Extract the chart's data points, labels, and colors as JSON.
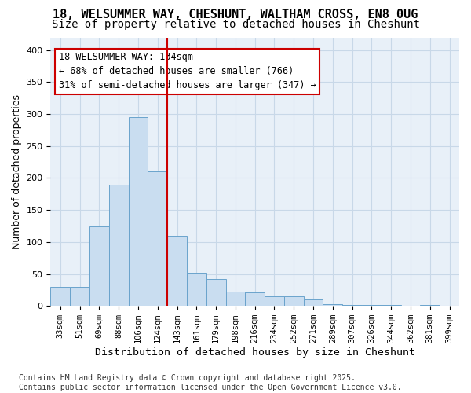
{
  "title1": "18, WELSUMMER WAY, CHESHUNT, WALTHAM CROSS, EN8 0UG",
  "title2": "Size of property relative to detached houses in Cheshunt",
  "xlabel": "Distribution of detached houses by size in Cheshunt",
  "ylabel": "Number of detached properties",
  "bin_labels": [
    "33sqm",
    "51sqm",
    "69sqm",
    "88sqm",
    "106sqm",
    "124sqm",
    "143sqm",
    "161sqm",
    "179sqm",
    "198sqm",
    "216sqm",
    "234sqm",
    "252sqm",
    "271sqm",
    "289sqm",
    "307sqm",
    "326sqm",
    "344sqm",
    "362sqm",
    "381sqm",
    "399sqm"
  ],
  "bar_values": [
    30,
    30,
    125,
    190,
    295,
    210,
    110,
    52,
    42,
    22,
    21,
    15,
    15,
    10,
    3,
    2,
    1,
    1,
    0,
    1,
    0
  ],
  "bar_color": "#c9ddf0",
  "bar_edge_color": "#6aa3cc",
  "vline_x": 5.5,
  "vline_color": "#cc0000",
  "annotation_text": "18 WELSUMMER WAY: 134sqm\n← 68% of detached houses are smaller (766)\n31% of semi-detached houses are larger (347) →",
  "annotation_box_color": "#ffffff",
  "annotation_box_edge": "#cc0000",
  "ylim": [
    0,
    420
  ],
  "yticks": [
    0,
    50,
    100,
    150,
    200,
    250,
    300,
    350,
    400
  ],
  "grid_color": "#c8d8e8",
  "bg_color": "#e8f0f8",
  "footer_text": "Contains HM Land Registry data © Crown copyright and database right 2025.\nContains public sector information licensed under the Open Government Licence v3.0.",
  "title_fontsize": 11,
  "subtitle_fontsize": 10,
  "axis_label_fontsize": 9,
  "tick_fontsize": 7.5,
  "annotation_fontsize": 8.5,
  "footer_fontsize": 7
}
